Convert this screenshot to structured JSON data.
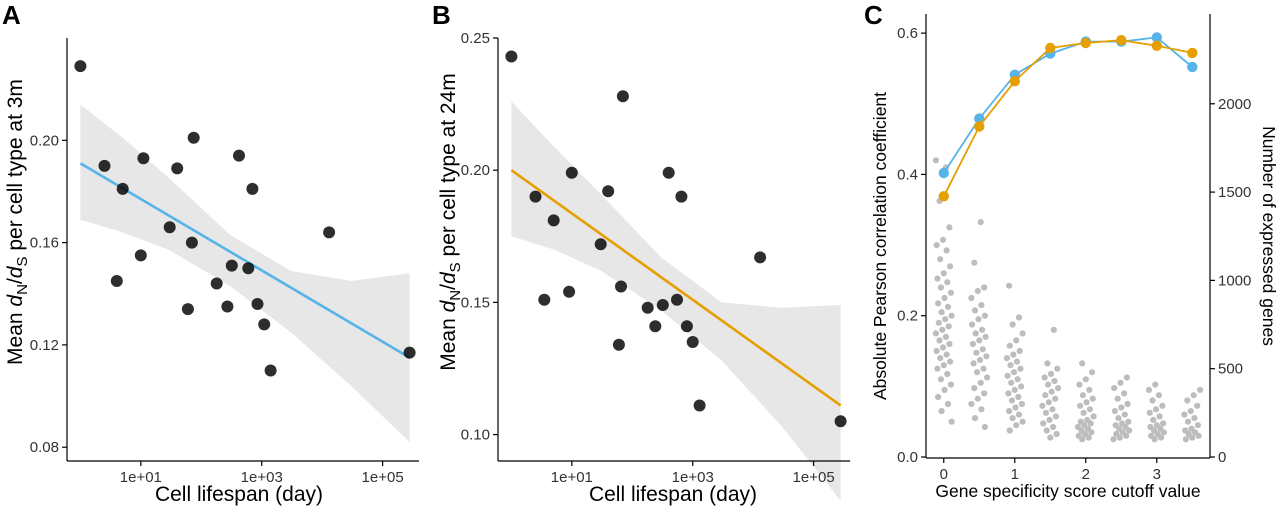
{
  "figure": {
    "panels": [
      "A",
      "B",
      "C"
    ]
  },
  "chart_data": [
    {
      "panel": "A",
      "type": "scatter",
      "xlabel": "Cell lifespan (day)",
      "ylabel": {
        "prefix": "Mean ",
        "d1": "d",
        "s1": "N",
        "mid": "/",
        "d2": "d",
        "s2": "S",
        "suffix": " per cell type at 3m"
      },
      "x_scale": "log10",
      "xlim": [
        0.6,
        400000
      ],
      "ylim": [
        0.075,
        0.24
      ],
      "x_ticks": [
        10,
        1000,
        100000
      ],
      "x_tick_labels": [
        "1e+01",
        "1e+03",
        "1e+05"
      ],
      "y_ticks": [
        0.08,
        0.12,
        0.16,
        0.2
      ],
      "y_tick_labels": [
        "0.08",
        "0.12",
        "0.16",
        "0.20"
      ],
      "points": [
        {
          "x": 1,
          "y": 0.229
        },
        {
          "x": 2.5,
          "y": 0.19
        },
        {
          "x": 4,
          "y": 0.145
        },
        {
          "x": 5,
          "y": 0.181
        },
        {
          "x": 10,
          "y": 0.155
        },
        {
          "x": 11,
          "y": 0.193
        },
        {
          "x": 30,
          "y": 0.166
        },
        {
          "x": 40,
          "y": 0.189
        },
        {
          "x": 60,
          "y": 0.134
        },
        {
          "x": 70,
          "y": 0.16
        },
        {
          "x": 75,
          "y": 0.201
        },
        {
          "x": 180,
          "y": 0.144
        },
        {
          "x": 270,
          "y": 0.135
        },
        {
          "x": 320,
          "y": 0.151
        },
        {
          "x": 420,
          "y": 0.194
        },
        {
          "x": 600,
          "y": 0.15
        },
        {
          "x": 700,
          "y": 0.181
        },
        {
          "x": 850,
          "y": 0.136
        },
        {
          "x": 1100,
          "y": 0.128
        },
        {
          "x": 1400,
          "y": 0.11
        },
        {
          "x": 13000,
          "y": 0.164
        },
        {
          "x": 280000,
          "y": 0.117
        }
      ],
      "fit": {
        "x": [
          1,
          280000
        ],
        "y": [
          0.191,
          0.115
        ],
        "color": "#56B4E9"
      },
      "ci_band": {
        "x": [
          1,
          5,
          30,
          300,
          3000,
          30000,
          280000
        ],
        "lower": [
          0.169,
          0.164,
          0.157,
          0.143,
          0.125,
          0.104,
          0.082
        ],
        "upper": [
          0.214,
          0.201,
          0.185,
          0.163,
          0.149,
          0.145,
          0.148
        ]
      }
    },
    {
      "panel": "B",
      "type": "scatter",
      "xlabel": "Cell lifespan (day)",
      "ylabel": {
        "prefix": "Mean ",
        "d1": "d",
        "s1": "N",
        "mid": "/",
        "d2": "d",
        "s2": "S",
        "suffix": " per cell type at 24m"
      },
      "x_scale": "log10",
      "xlim": [
        0.6,
        400000
      ],
      "ylim": [
        0.09,
        0.25
      ],
      "x_ticks": [
        10,
        1000,
        100000
      ],
      "x_tick_labels": [
        "1e+01",
        "1e+03",
        "1e+05"
      ],
      "y_ticks": [
        0.1,
        0.15,
        0.2,
        0.25
      ],
      "y_tick_labels": [
        "0.10",
        "0.15",
        "0.20",
        "0.25"
      ],
      "points": [
        {
          "x": 1,
          "y": 0.243
        },
        {
          "x": 2.5,
          "y": 0.19
        },
        {
          "x": 3.5,
          "y": 0.151
        },
        {
          "x": 5,
          "y": 0.181
        },
        {
          "x": 9,
          "y": 0.154
        },
        {
          "x": 10,
          "y": 0.199
        },
        {
          "x": 30,
          "y": 0.172
        },
        {
          "x": 40,
          "y": 0.192
        },
        {
          "x": 60,
          "y": 0.134
        },
        {
          "x": 65,
          "y": 0.156
        },
        {
          "x": 70,
          "y": 0.228
        },
        {
          "x": 180,
          "y": 0.148
        },
        {
          "x": 240,
          "y": 0.141
        },
        {
          "x": 320,
          "y": 0.149
        },
        {
          "x": 400,
          "y": 0.199
        },
        {
          "x": 550,
          "y": 0.151
        },
        {
          "x": 650,
          "y": 0.19
        },
        {
          "x": 800,
          "y": 0.141
        },
        {
          "x": 1000,
          "y": 0.135
        },
        {
          "x": 1300,
          "y": 0.111
        },
        {
          "x": 13000,
          "y": 0.167
        },
        {
          "x": 280000,
          "y": 0.105
        }
      ],
      "fit": {
        "x": [
          1,
          280000
        ],
        "y": [
          0.2,
          0.111
        ],
        "color": "#E69F00"
      },
      "ci_band": {
        "x": [
          1,
          5,
          30,
          300,
          3000,
          30000,
          280000
        ],
        "lower": [
          0.175,
          0.17,
          0.162,
          0.147,
          0.128,
          0.103,
          0.075
        ],
        "upper": [
          0.226,
          0.209,
          0.191,
          0.167,
          0.15,
          0.148,
          0.149
        ]
      }
    },
    {
      "panel": "C",
      "type": "line",
      "xlabel": "Gene specificity score cutoff value",
      "ylabel_left": "Absolute Pearson correlation coefficient",
      "ylabel_right": "Number of expressed genes",
      "xlim": [
        -0.25,
        3.75
      ],
      "ylim_left": [
        0,
        0.62
      ],
      "ylim_right": [
        0,
        2480
      ],
      "x_ticks": [
        0,
        1,
        2,
        3
      ],
      "x_tick_labels": [
        "0",
        "1",
        "2",
        "3"
      ],
      "y_ticks_left": [
        0,
        0.2,
        0.4,
        0.6
      ],
      "y_tick_labels_left": [
        "0.0",
        "0.2",
        "0.4",
        "0.6"
      ],
      "y_ticks_right": [
        0,
        500,
        1000,
        1500,
        2000
      ],
      "y_tick_labels_right": [
        "0",
        "500",
        "1000",
        "1500",
        "2000"
      ],
      "series": [
        {
          "color": "#56B4E9",
          "x": [
            0,
            0.5,
            1,
            1.5,
            2,
            2.5,
            3,
            3.5
          ],
          "y": [
            0.402,
            0.479,
            0.541,
            0.571,
            0.588,
            0.588,
            0.594,
            0.552
          ]
        },
        {
          "color": "#E69F00",
          "x": [
            0,
            0.5,
            1,
            1.5,
            2,
            2.5,
            3,
            3.5
          ],
          "y": [
            0.369,
            0.468,
            0.532,
            0.579,
            0.586,
            0.59,
            0.582,
            0.572
          ]
        }
      ],
      "jitter_groups": [
        {
          "x": 0,
          "n_right": [
            1680,
            1640,
            1450,
            1300,
            1230,
            1200,
            1170,
            1120,
            1080,
            1040,
            1010,
            990,
            960,
            930,
            900,
            870,
            850,
            820,
            800,
            780,
            760,
            740,
            720,
            700,
            680,
            660,
            640,
            620,
            600,
            580,
            560,
            540,
            520,
            500,
            470,
            440,
            410,
            380,
            340,
            300,
            260,
            200
          ]
        },
        {
          "x": 0.5,
          "n_right": [
            1330,
            1100,
            960,
            940,
            900,
            860,
            830,
            800,
            780,
            750,
            720,
            700,
            680,
            660,
            640,
            610,
            590,
            570,
            550,
            530,
            500,
            480,
            450,
            420,
            390,
            360,
            330,
            300,
            270,
            220,
            170
          ]
        },
        {
          "x": 1,
          "n_right": [
            970,
            790,
            750,
            700,
            660,
            630,
            600,
            580,
            560,
            540,
            520,
            500,
            480,
            460,
            440,
            420,
            400,
            380,
            360,
            340,
            320,
            300,
            280,
            260,
            240,
            220,
            200,
            180,
            150
          ]
        },
        {
          "x": 1.5,
          "n_right": [
            720,
            530,
            500,
            470,
            450,
            430,
            410,
            390,
            370,
            350,
            330,
            310,
            290,
            270,
            250,
            230,
            210,
            190,
            170,
            150,
            130,
            110
          ]
        },
        {
          "x": 2,
          "n_right": [
            530,
            480,
            440,
            410,
            380,
            350,
            330,
            310,
            290,
            270,
            250,
            230,
            210,
            200,
            190,
            180,
            170,
            160,
            150,
            140,
            130,
            120,
            110,
            100
          ]
        },
        {
          "x": 2.5,
          "n_right": [
            450,
            420,
            390,
            360,
            330,
            300,
            280,
            260,
            240,
            220,
            200,
            190,
            180,
            170,
            160,
            150,
            140,
            130,
            120,
            110,
            100
          ]
        },
        {
          "x": 3,
          "n_right": [
            410,
            380,
            350,
            320,
            290,
            270,
            250,
            230,
            210,
            190,
            180,
            170,
            160,
            150,
            140,
            130,
            120,
            110,
            100
          ]
        },
        {
          "x": 3.5,
          "n_right": [
            380,
            350,
            320,
            290,
            260,
            240,
            220,
            200,
            180,
            160,
            150,
            140,
            130,
            120,
            110,
            100
          ]
        }
      ]
    }
  ]
}
